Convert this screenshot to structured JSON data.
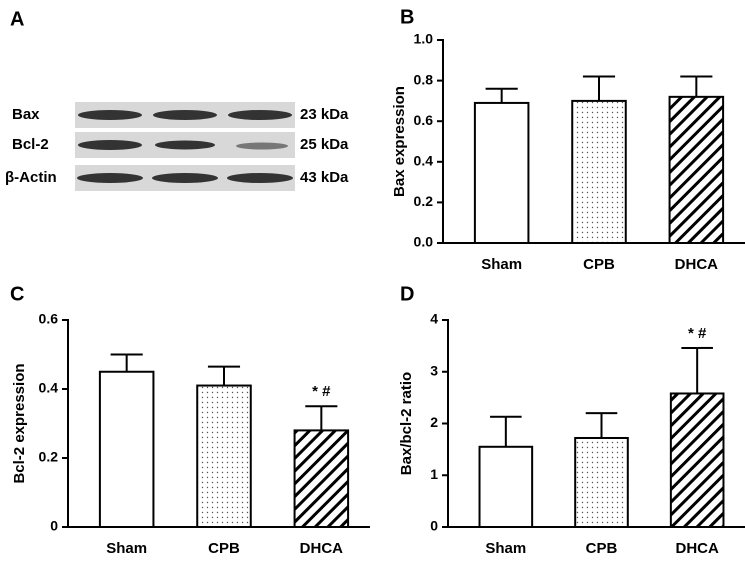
{
  "blot": {
    "panel_label": "A",
    "rows": [
      {
        "protein": "Bax",
        "size": "23 kDa"
      },
      {
        "protein": "Bcl-2",
        "size": "25 kDa"
      },
      {
        "protein": "β-Actin",
        "size": "43 kDa"
      }
    ]
  },
  "chart_data": [
    {
      "type": "bar",
      "panel_label": "B",
      "ylabel": "Bax expression",
      "categories": [
        "Sham",
        "CPB",
        "DHCA"
      ],
      "values": [
        0.69,
        0.7,
        0.72
      ],
      "errors": [
        0.07,
        0.12,
        0.1
      ],
      "fills": [
        "white",
        "dots",
        "hatch"
      ],
      "color": "#000000",
      "ylim": [
        0,
        1.0
      ],
      "yticks": [
        {
          "value": 0,
          "label": "0.0"
        },
        0.2,
        0.4,
        0.6,
        0.8,
        {
          "value": 1.0,
          "label": "1.0"
        }
      ]
    },
    {
      "type": "bar",
      "panel_label": "C",
      "ylabel": "Bcl-2 expression",
      "categories": [
        "Sham",
        "CPB",
        "DHCA"
      ],
      "values": [
        0.45,
        0.41,
        0.28
      ],
      "errors": [
        0.05,
        0.055,
        0.07
      ],
      "value_annotations": [
        null,
        null,
        "* #"
      ],
      "fills": [
        "white",
        "dots",
        "hatch"
      ],
      "color": "#000000",
      "ylim": [
        0,
        0.6
      ],
      "yticks": [
        0,
        0.2,
        0.4,
        0.6
      ]
    },
    {
      "type": "bar",
      "panel_label": "D",
      "ylabel": "Bax/bcl-2 ratio",
      "categories": [
        "Sham",
        "CPB",
        "DHCA"
      ],
      "values": [
        1.55,
        1.72,
        2.58
      ],
      "errors": [
        0.58,
        0.48,
        0.88
      ],
      "value_annotations": [
        null,
        null,
        "* #"
      ],
      "fills": [
        "white",
        "dots",
        "hatch"
      ],
      "color": "#000000",
      "ylim": [
        0,
        4
      ],
      "yticks": [
        0,
        1,
        2,
        3,
        4
      ]
    }
  ]
}
